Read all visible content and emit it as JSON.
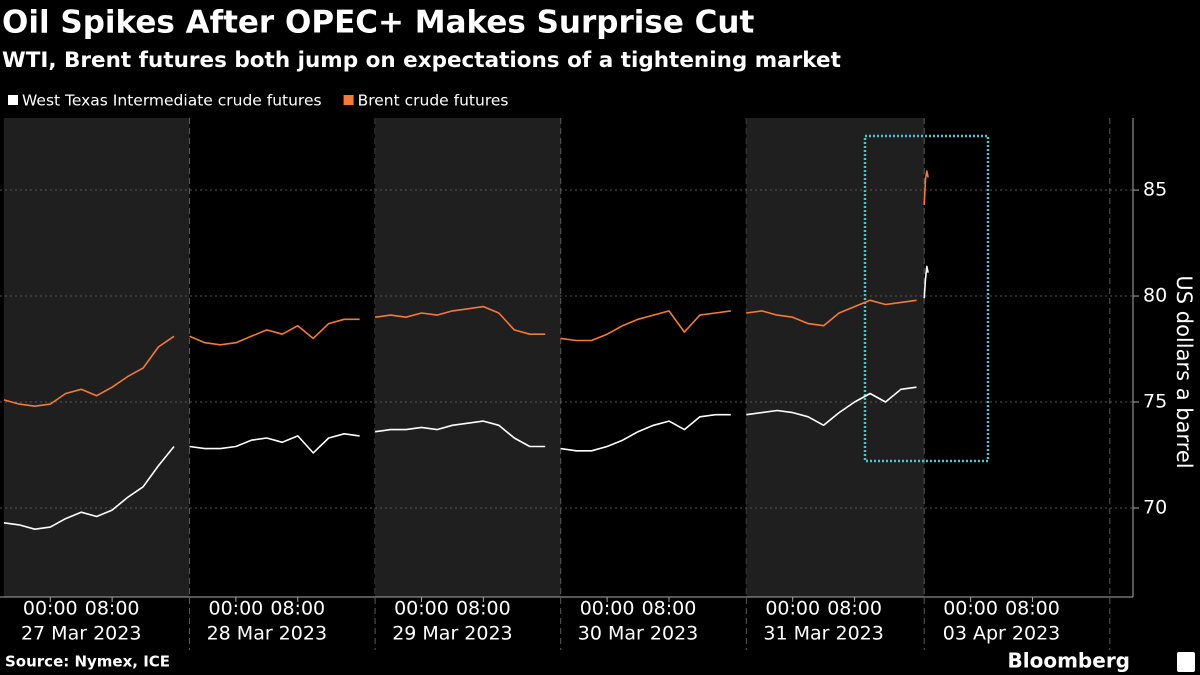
{
  "chart_data": {
    "type": "line",
    "title": "Oil Spikes After OPEC+ Makes Surprise Cut",
    "subtitle": "WTI, Brent futures both jump on expectations of a tightening market",
    "y_label": "US dollars a barrel",
    "source": "Source: Nymex, ICE",
    "brand": "Bloomberg",
    "x": [
      "2023-03-26T18:00",
      "2023-03-26T20:00",
      "2023-03-26T22:00",
      "2023-03-27T00:00",
      "2023-03-27T02:00",
      "2023-03-27T04:00",
      "2023-03-27T06:00",
      "2023-03-27T08:00",
      "2023-03-27T10:00",
      "2023-03-27T12:00",
      "2023-03-27T14:00",
      "2023-03-27T16:00",
      "2023-03-27T17:30",
      "2023-03-27T18:00",
      "2023-03-27T20:00",
      "2023-03-27T22:00",
      "2023-03-28T00:00",
      "2023-03-28T02:00",
      "2023-03-28T04:00",
      "2023-03-28T06:00",
      "2023-03-28T08:00",
      "2023-03-28T10:00",
      "2023-03-28T12:00",
      "2023-03-28T14:00",
      "2023-03-28T16:00",
      "2023-03-28T17:30",
      "2023-03-28T18:00",
      "2023-03-28T20:00",
      "2023-03-28T22:00",
      "2023-03-29T00:00",
      "2023-03-29T02:00",
      "2023-03-29T04:00",
      "2023-03-29T06:00",
      "2023-03-29T08:00",
      "2023-03-29T10:00",
      "2023-03-29T12:00",
      "2023-03-29T14:00",
      "2023-03-29T16:00",
      "2023-03-29T17:30",
      "2023-03-29T18:00",
      "2023-03-29T20:00",
      "2023-03-29T22:00",
      "2023-03-30T00:00",
      "2023-03-30T02:00",
      "2023-03-30T04:00",
      "2023-03-30T06:00",
      "2023-03-30T08:00",
      "2023-03-30T10:00",
      "2023-03-30T12:00",
      "2023-03-30T14:00",
      "2023-03-30T16:00",
      "2023-03-30T17:30",
      "2023-03-30T18:00",
      "2023-03-30T20:00",
      "2023-03-30T22:00",
      "2023-03-31T00:00",
      "2023-03-31T02:00",
      "2023-03-31T04:00",
      "2023-03-31T06:00",
      "2023-03-31T08:00",
      "2023-03-31T10:00",
      "2023-03-31T12:00",
      "2023-03-31T14:00",
      "2023-03-31T16:00",
      "2023-03-31T17:00",
      "2023-04-02T18:00",
      "2023-04-02T18:10",
      "2023-04-02T18:20",
      "2023-04-02T18:30"
    ],
    "series": [
      {
        "name": "West Texas Intermediate crude futures",
        "color": "#ffffff",
        "values": [
          69.3,
          69.2,
          69.0,
          69.1,
          69.5,
          69.8,
          69.6,
          69.9,
          70.5,
          71.0,
          72.0,
          72.9,
          null,
          72.9,
          72.8,
          72.8,
          72.9,
          73.2,
          73.3,
          73.1,
          73.4,
          72.6,
          73.3,
          73.5,
          73.4,
          null,
          73.6,
          73.7,
          73.7,
          73.8,
          73.7,
          73.9,
          74.0,
          74.1,
          73.9,
          73.3,
          72.9,
          72.9,
          null,
          72.8,
          72.7,
          72.7,
          72.9,
          73.2,
          73.6,
          73.9,
          74.1,
          73.7,
          74.3,
          74.4,
          74.4,
          null,
          74.4,
          74.5,
          74.6,
          74.5,
          74.3,
          73.9,
          74.5,
          75.0,
          75.4,
          75.0,
          75.6,
          75.7,
          null,
          79.9,
          80.8,
          81.4,
          81.1
        ]
      },
      {
        "name": "Brent crude futures",
        "color": "#f4793a",
        "values": [
          75.1,
          74.9,
          74.8,
          74.9,
          75.4,
          75.6,
          75.3,
          75.7,
          76.2,
          76.6,
          77.6,
          78.1,
          null,
          78.1,
          77.8,
          77.7,
          77.8,
          78.1,
          78.4,
          78.2,
          78.6,
          78.0,
          78.7,
          78.9,
          78.9,
          null,
          79.0,
          79.1,
          79.0,
          79.2,
          79.1,
          79.3,
          79.4,
          79.5,
          79.2,
          78.4,
          78.2,
          78.2,
          null,
          78.0,
          77.9,
          77.9,
          78.2,
          78.6,
          78.9,
          79.1,
          79.3,
          78.3,
          79.1,
          79.2,
          79.3,
          null,
          79.2,
          79.3,
          79.1,
          79.0,
          78.7,
          78.6,
          79.2,
          79.5,
          79.8,
          79.6,
          79.7,
          79.8,
          null,
          84.3,
          85.5,
          85.9,
          85.6
        ]
      }
    ],
    "xlim": [
      "2023-03-26T17:30",
      "2023-04-03T21:00"
    ],
    "xbreak": [
      "2023-03-31T17:00",
      "2023-04-02T18:00"
    ],
    "xticks": [
      {
        "value": "2023-03-27T00:00",
        "label": "00:00"
      },
      {
        "value": "2023-03-27T08:00",
        "label": "08:00"
      },
      {
        "value": "2023-03-28T00:00",
        "label": "00:00"
      },
      {
        "value": "2023-03-28T08:00",
        "label": "08:00"
      },
      {
        "value": "2023-03-29T00:00",
        "label": "00:00"
      },
      {
        "value": "2023-03-29T08:00",
        "label": "08:00"
      },
      {
        "value": "2023-03-30T00:00",
        "label": "00:00"
      },
      {
        "value": "2023-03-30T08:00",
        "label": "08:00"
      },
      {
        "value": "2023-03-31T00:00",
        "label": "00:00"
      },
      {
        "value": "2023-03-31T08:00",
        "label": "08:00"
      },
      {
        "value": "2023-04-03T00:00",
        "label": "00:00"
      },
      {
        "value": "2023-04-03T08:00",
        "label": "08:00"
      }
    ],
    "xtick_dates": [
      {
        "value": "2023-03-27",
        "label": "27 Mar 2023"
      },
      {
        "value": "2023-03-28",
        "label": "28 Mar 2023"
      },
      {
        "value": "2023-03-29",
        "label": "29 Mar 2023"
      },
      {
        "value": "2023-03-30",
        "label": "30 Mar 2023"
      },
      {
        "value": "2023-03-31",
        "label": "31 Mar 2023"
      },
      {
        "value": "2023-04-03",
        "label": "03 Apr 2023"
      }
    ],
    "ylim": [
      65.8,
      88.4
    ],
    "yticks": [
      70,
      75,
      80,
      85
    ],
    "grid": true,
    "legend": "top-left"
  }
}
